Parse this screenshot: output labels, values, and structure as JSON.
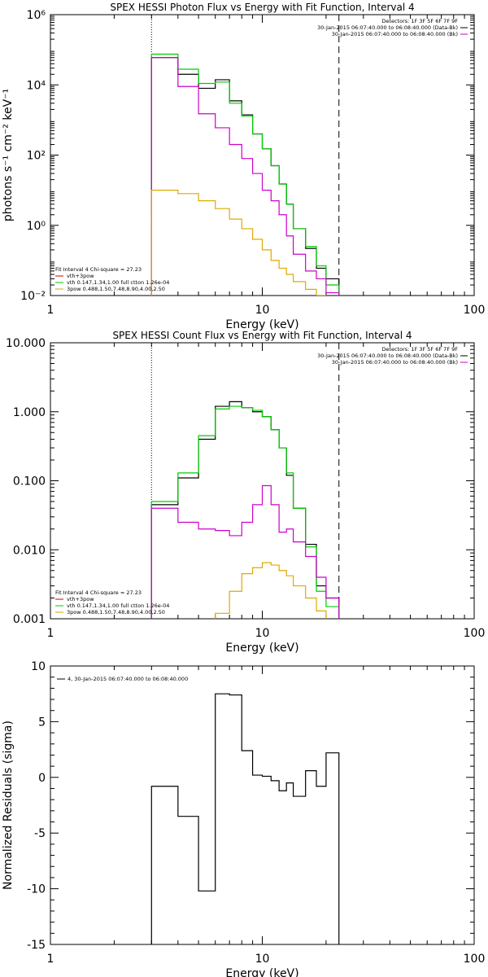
{
  "chart_data": [
    {
      "type": "line",
      "title": "SPEX HESSI Photon Flux vs Energy with Fit Function, Interval 4",
      "xlabel": "Energy (keV)",
      "ylabel": "photons s⁻¹ cm⁻² keV⁻¹",
      "xscale": "log",
      "yscale": "log",
      "xlim": [
        1,
        100
      ],
      "ylim": [
        0.01,
        1000000
      ],
      "x_ticks": [
        {
          "v": 1,
          "label": "1"
        },
        {
          "v": 10,
          "label": "10"
        },
        {
          "v": 100,
          "label": "100"
        }
      ],
      "y_ticks": [
        {
          "v": 0.01,
          "label": "10⁻²"
        },
        {
          "v": 1,
          "label": "10⁰"
        },
        {
          "v": 100,
          "label": "10²"
        },
        {
          "v": 10000,
          "label": "10⁴"
        },
        {
          "v": 1000000,
          "label": "10⁶"
        }
      ],
      "vlines": [
        {
          "x": 3,
          "style": "dotted"
        },
        {
          "x": 23,
          "style": "dashed"
        }
      ],
      "legend_topright": [
        {
          "text": "Detectors: 1F 3F 5F 6F 7F 9F",
          "color": null
        },
        {
          "text": "30-Jan-2015 06:07:40.000 to 06:08:40.000 (Data-Bk)",
          "color": "#000000"
        },
        {
          "text": "30-Jan-2015 06:07:40.000 to 06:08:40.000 (Bk)",
          "color": "#cc00cc"
        }
      ],
      "legend_bottomleft": [
        {
          "text": "Fit Interval  4    Chi-square = 27.23",
          "color": null
        },
        {
          "text": "vth+3pow",
          "color": "#cc0000"
        },
        {
          "text": "vth 0.147,1.34,1.00   full ctton 1.26e-04",
          "color": "#00cc00"
        },
        {
          "text": "3pow 0.488,1.50,7.48,8.90,4.00,2.50",
          "color": "#ccaa00"
        }
      ],
      "bin_edges": [
        3,
        4,
        5,
        6,
        7,
        8,
        9,
        10,
        11,
        12,
        13,
        14,
        16,
        18,
        20,
        23
      ],
      "series": [
        {
          "color": "#000000",
          "values": [
            60000,
            20000,
            8000,
            14000,
            3500,
            1400,
            400,
            150,
            50,
            15,
            4,
            0.8,
            0.22,
            0.06,
            0.03
          ]
        },
        {
          "color": "#00cc00",
          "values": [
            75000,
            28000,
            11000,
            12000,
            3000,
            1300,
            400,
            150,
            50,
            15,
            4,
            0.8,
            0.25,
            0.07,
            0.02
          ]
        },
        {
          "color": "#cc00cc",
          "values": [
            60000,
            9000,
            1500,
            600,
            200,
            80,
            30,
            10,
            5,
            2,
            0.5,
            0.15,
            0.05,
            0.03,
            0.012
          ]
        },
        {
          "color": "#ddaa00",
          "values": [
            10,
            8,
            5,
            3,
            1.5,
            0.8,
            0.4,
            0.2,
            0.1,
            0.06,
            0.04,
            0.025,
            0.015,
            0.01,
            0.008
          ]
        }
      ]
    },
    {
      "type": "line",
      "title": "SPEX HESSI Count Flux vs Energy with Fit Function, Interval 4",
      "xlabel": "Energy (keV)",
      "ylabel": "",
      "xscale": "log",
      "yscale": "log",
      "xlim": [
        1,
        100
      ],
      "ylim": [
        0.001,
        10
      ],
      "x_ticks": [
        {
          "v": 1,
          "label": "1"
        },
        {
          "v": 10,
          "label": "10"
        },
        {
          "v": 100,
          "label": "100"
        }
      ],
      "y_ticks": [
        {
          "v": 0.001,
          "label": "0.001"
        },
        {
          "v": 0.01,
          "label": "0.010"
        },
        {
          "v": 0.1,
          "label": "0.100"
        },
        {
          "v": 1,
          "label": "1.000"
        },
        {
          "v": 10,
          "label": "10.000"
        }
      ],
      "vlines": [
        {
          "x": 3,
          "style": "dotted"
        },
        {
          "x": 23,
          "style": "dashed"
        }
      ],
      "legend_topright": [
        {
          "text": "Detectors: 1F 3F 5F 6F 7F 9F",
          "color": null
        },
        {
          "text": "30-Jan-2015 06:07:40.000 to 06:08:40.000 (Data-Bk)",
          "color": "#000000"
        },
        {
          "text": "30-Jan-2015 06:07:40.000 to 06:08:40.000 (Bk)",
          "color": "#cc00cc"
        }
      ],
      "legend_bottomleft": [
        {
          "text": "Fit Interval  4    Chi-square = 27.23",
          "color": null
        },
        {
          "text": "vth+3pow",
          "color": "#cc0000"
        },
        {
          "text": "vth 0.147,1.34,1.00   full ctton 1.26e-04",
          "color": "#00cc00"
        },
        {
          "text": "3pow 0.488,1.50,7.48,8.90,4.00,2.50",
          "color": "#ccaa00"
        }
      ],
      "bin_edges": [
        3,
        4,
        5,
        6,
        7,
        8,
        9,
        10,
        11,
        12,
        13,
        14,
        16,
        18,
        20,
        23
      ],
      "series": [
        {
          "color": "#000000",
          "values": [
            0.045,
            0.11,
            0.4,
            1.2,
            1.4,
            1.15,
            1.0,
            0.85,
            0.55,
            0.3,
            0.12,
            0.04,
            0.012,
            0.003,
            0.002
          ]
        },
        {
          "color": "#00cc00",
          "values": [
            0.05,
            0.13,
            0.45,
            1.1,
            1.2,
            1.15,
            1.05,
            0.85,
            0.55,
            0.3,
            0.13,
            0.04,
            0.011,
            0.0025,
            0.0015
          ]
        },
        {
          "color": "#cc00cc",
          "values": [
            0.04,
            0.025,
            0.02,
            0.019,
            0.016,
            0.025,
            0.045,
            0.085,
            0.045,
            0.018,
            0.02,
            0.013,
            0.008,
            0.004,
            0.002
          ]
        },
        {
          "color": "#ddaa00",
          "values": [
            0.0008,
            0.0009,
            0.0009,
            0.0012,
            0.0025,
            0.0045,
            0.0055,
            0.0065,
            0.006,
            0.005,
            0.0042,
            0.003,
            0.002,
            0.0013,
            0.0009
          ]
        }
      ]
    },
    {
      "type": "line",
      "title": "",
      "xlabel": "Energy (keV)",
      "ylabel": "Normalized Residuals (sigma)",
      "xscale": "log",
      "yscale": "linear",
      "xlim": [
        1,
        100
      ],
      "ylim": [
        -15,
        10
      ],
      "x_ticks": [
        {
          "v": 1,
          "label": "1"
        },
        {
          "v": 10,
          "label": "10"
        },
        {
          "v": 100,
          "label": "100"
        }
      ],
      "y_ticks": [
        {
          "v": -15,
          "label": "-15"
        },
        {
          "v": -10,
          "label": "-10"
        },
        {
          "v": -5,
          "label": "-5"
        },
        {
          "v": 0,
          "label": "0"
        },
        {
          "v": 5,
          "label": "5"
        },
        {
          "v": 10,
          "label": "10"
        }
      ],
      "vlines": [],
      "legend_topright": [],
      "legend_topleft": [
        {
          "text": "4, 30-Jan-2015 06:07:40.000 to 06:08:40.000",
          "color": "#000000"
        }
      ],
      "legend_bottomleft": [],
      "bin_edges": [
        3,
        4,
        5,
        6,
        7,
        8,
        9,
        10,
        11,
        12,
        13,
        14,
        16,
        18,
        20,
        23
      ],
      "series": [
        {
          "color": "#000000",
          "values": [
            -0.8,
            -3.5,
            -10.2,
            7.5,
            7.4,
            2.4,
            0.2,
            0.1,
            -0.3,
            -1.2,
            -0.5,
            -1.7,
            0.6,
            -0.8,
            2.2
          ],
          "clip_to_bottom": true
        }
      ]
    }
  ]
}
